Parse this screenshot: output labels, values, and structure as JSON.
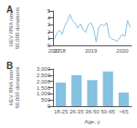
{
  "chart_data": [
    {
      "type": "line",
      "title": "A",
      "ylabel": "HEV RNA rate/\n50,000 donations",
      "categories": [
        "2017",
        null,
        "2018",
        null,
        null,
        null,
        null,
        null,
        null,
        null,
        null,
        null,
        null,
        null,
        "2019",
        null,
        null,
        null,
        null,
        null,
        null,
        null,
        null,
        null,
        null,
        null,
        "2020",
        null,
        null,
        null
      ],
      "values": [
        0.9,
        1.8,
        2.2,
        1.6,
        2.8,
        3.5,
        4.5,
        3.6,
        3.2,
        2.5,
        3.1,
        2.3,
        1.9,
        3.0,
        3.3,
        2.5,
        0.5,
        2.6,
        3.1,
        2.8,
        3.3,
        1.3,
        0.9,
        0.8,
        0.6,
        1.1,
        1.6,
        1.3,
        3.6,
        2.6
      ],
      "color": "#85c1e0",
      "ylim": [
        0,
        5
      ],
      "yticks": [
        0,
        1,
        2,
        3,
        4,
        5
      ],
      "grid": false
    },
    {
      "type": "bar",
      "title": "B",
      "ylabel": "HEV RNA rate/\n50,000 donations",
      "xlabel": "Age, y",
      "categories": [
        "18-25",
        "26-35",
        "36-50",
        "50-65",
        ">65"
      ],
      "values": [
        1900,
        2500,
        2100,
        2800,
        1100
      ],
      "color": "#85c1e0",
      "ylim": [
        0,
        3000
      ],
      "yticks": [
        0,
        500,
        {
          "value": 1000,
          "label": "1,000"
        },
        {
          "value": 1500,
          "label": "1,500"
        },
        {
          "value": 2000,
          "label": "2,000"
        },
        {
          "value": 2500,
          "label": "2,500"
        },
        {
          "value": 3000,
          "label": "3,000"
        }
      ],
      "grid": false
    }
  ]
}
